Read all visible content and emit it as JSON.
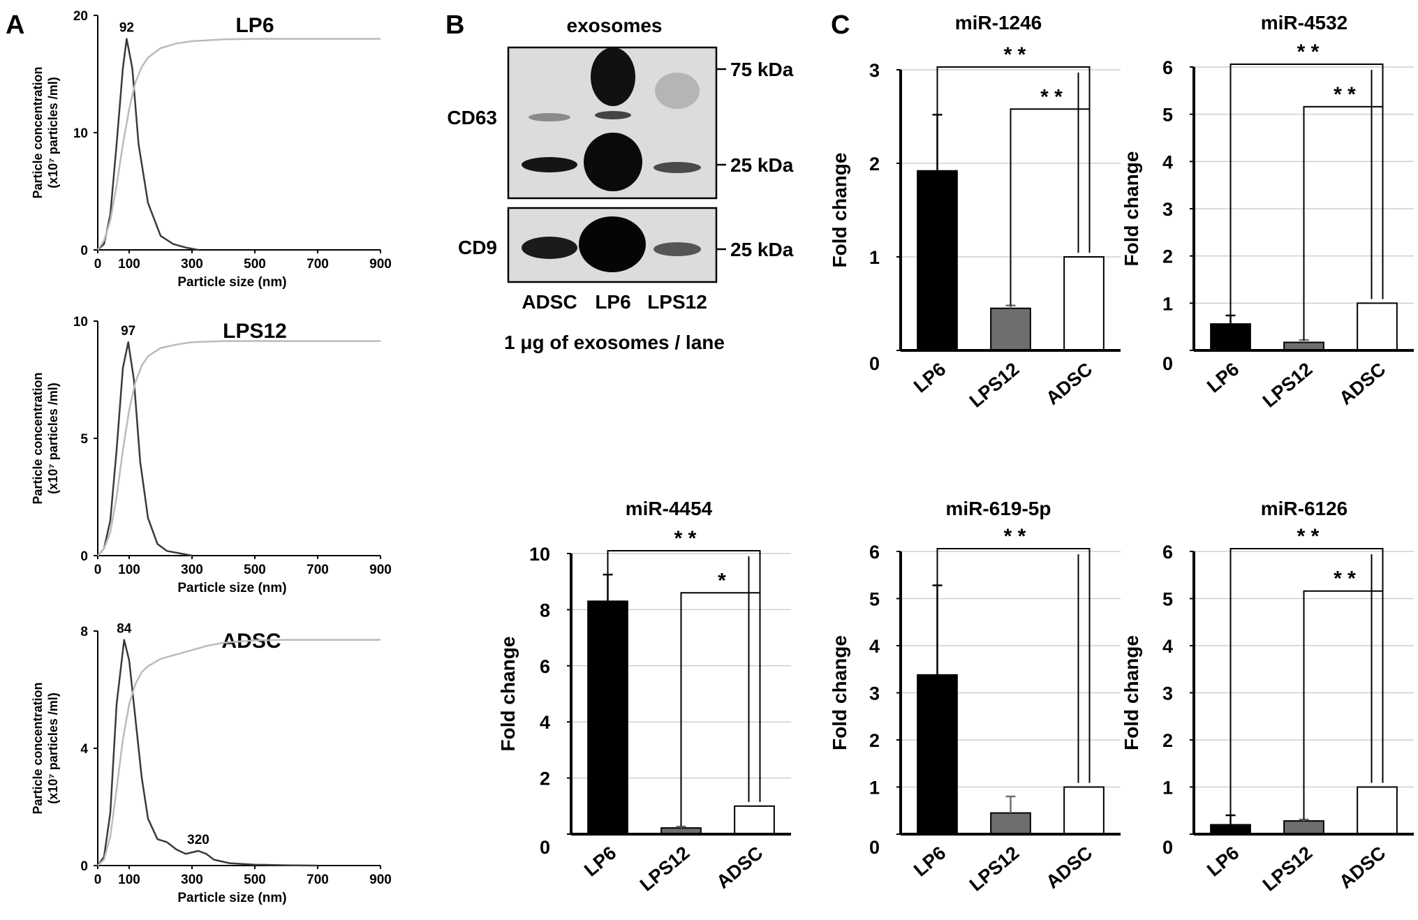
{
  "panels": {
    "a": "A",
    "b": "B",
    "c": "C"
  },
  "colors": {
    "black": "#000000",
    "size_curve": "#3a3a3a",
    "cumulative_curve": "#bbbbbb",
    "bar_lp6": "#000000",
    "bar_lps12": "#6e6e6e",
    "bar_adsc": "#ffffff",
    "grid": "#cfcfcf"
  },
  "chart_data": [
    {
      "type": "line",
      "panel": "A",
      "title": "LP6",
      "xlabel": "Particle size (nm)",
      "ylabel_line1": "Particle concentration",
      "ylabel_line2": "(x10⁷ particles /ml)",
      "xlim": [
        0,
        900
      ],
      "ylim": [
        0,
        20
      ],
      "xticks": [
        0,
        100,
        300,
        500,
        700,
        900
      ],
      "yticks": [
        0,
        10,
        20
      ],
      "series": [
        {
          "kind": "size-distribution",
          "x": [
            0,
            20,
            40,
            60,
            80,
            92,
            110,
            130,
            160,
            200,
            240,
            280,
            320
          ],
          "y": [
            0,
            0.5,
            3,
            9,
            15.5,
            18,
            15.5,
            9,
            4,
            1.2,
            0.5,
            0.2,
            0
          ]
        },
        {
          "kind": "cumulative",
          "x": [
            0,
            20,
            40,
            60,
            80,
            100,
            120,
            140,
            160,
            200,
            250,
            300,
            400,
            500,
            600,
            900
          ],
          "y": [
            0,
            0.8,
            2.5,
            5.5,
            9,
            12,
            14.3,
            15.6,
            16.4,
            17.2,
            17.6,
            17.8,
            17.95,
            18,
            18,
            18
          ]
        }
      ],
      "annotations": [
        {
          "x": 92,
          "y": 18,
          "text": "92"
        }
      ]
    },
    {
      "type": "line",
      "panel": "A",
      "title": "LPS12",
      "xlabel": "Particle size (nm)",
      "ylabel_line1": "Particle concentration",
      "ylabel_line2": "(x10⁷ particles /ml)",
      "xlim": [
        0,
        900
      ],
      "ylim": [
        0,
        10
      ],
      "xticks": [
        0,
        100,
        300,
        500,
        700,
        900
      ],
      "yticks": [
        0,
        5,
        10
      ],
      "series": [
        {
          "kind": "size-distribution",
          "x": [
            0,
            20,
            40,
            60,
            80,
            97,
            115,
            135,
            160,
            190,
            220,
            260,
            300
          ],
          "y": [
            0,
            0.3,
            1.5,
            4.5,
            8,
            9.1,
            7.5,
            4,
            1.6,
            0.5,
            0.2,
            0.1,
            0
          ]
        },
        {
          "kind": "cumulative",
          "x": [
            0,
            20,
            40,
            60,
            80,
            100,
            120,
            140,
            160,
            200,
            250,
            300,
            400,
            500,
            900
          ],
          "y": [
            0,
            0.3,
            1,
            2.5,
            4.5,
            6.2,
            7.4,
            8.1,
            8.5,
            8.85,
            9,
            9.1,
            9.15,
            9.15,
            9.15
          ]
        }
      ],
      "annotations": [
        {
          "x": 97,
          "y": 9.1,
          "text": "97"
        }
      ]
    },
    {
      "type": "line",
      "panel": "A",
      "title": "ADSC",
      "xlabel": "Particle size (nm)",
      "ylabel_line1": "Particle concentration",
      "ylabel_line2": "(x10⁷ particles /ml)",
      "xlim": [
        0,
        900
      ],
      "ylim": [
        0,
        8
      ],
      "xticks": [
        0,
        100,
        300,
        500,
        700,
        900
      ],
      "yticks": [
        0,
        4,
        8
      ],
      "series": [
        {
          "kind": "size-distribution",
          "x": [
            0,
            20,
            40,
            60,
            84,
            100,
            120,
            140,
            160,
            190,
            220,
            250,
            280,
            300,
            320,
            345,
            370,
            420,
            500,
            600,
            700
          ],
          "y": [
            0,
            0.3,
            1.8,
            5.5,
            7.7,
            7,
            5,
            3,
            1.6,
            0.9,
            0.8,
            0.55,
            0.4,
            0.45,
            0.5,
            0.4,
            0.2,
            0.08,
            0.03,
            0.01,
            0
          ]
        },
        {
          "kind": "cumulative",
          "x": [
            0,
            20,
            40,
            60,
            80,
            100,
            120,
            140,
            160,
            200,
            250,
            300,
            350,
            400,
            500,
            600,
            700,
            900
          ],
          "y": [
            0,
            0.2,
            1,
            2.6,
            4.3,
            5.5,
            6.2,
            6.6,
            6.8,
            7.05,
            7.2,
            7.35,
            7.5,
            7.6,
            7.68,
            7.7,
            7.7,
            7.7
          ]
        }
      ],
      "annotations": [
        {
          "x": 84,
          "y": 7.7,
          "text": "84"
        },
        {
          "x": 320,
          "y": 0.5,
          "text": "320"
        }
      ]
    },
    {
      "type": "bar",
      "panel": "C",
      "title": "miR-1246",
      "ylabel": "Fold change",
      "categories": [
        "LP6",
        "LPS12",
        "ADSC"
      ],
      "values": [
        1.92,
        0.45,
        1.0
      ],
      "errors": [
        0.6,
        0.03,
        0
      ],
      "ylim": [
        0,
        3
      ],
      "yticks": [
        0,
        1,
        2,
        3
      ],
      "significance": [
        {
          "from": 0,
          "to": 2,
          "label": "* *"
        },
        {
          "from": 1,
          "to": 2,
          "label": "* *"
        }
      ]
    },
    {
      "type": "bar",
      "panel": "C",
      "title": "miR-4532",
      "ylabel": "Fold change",
      "categories": [
        "LP6",
        "LPS12",
        "ADSC"
      ],
      "values": [
        0.56,
        0.17,
        1.0
      ],
      "errors": [
        0.18,
        0.05,
        0
      ],
      "ylim": [
        0,
        6
      ],
      "yticks": [
        0,
        1,
        2,
        3,
        4,
        5,
        6
      ],
      "significance": [
        {
          "from": 0,
          "to": 2,
          "label": "* *"
        },
        {
          "from": 1,
          "to": 2,
          "label": "* *"
        }
      ]
    },
    {
      "type": "bar",
      "panel": "C",
      "title": "miR-4454",
      "ylabel": "Fold change",
      "categories": [
        "LP6",
        "LPS12",
        "ADSC"
      ],
      "values": [
        8.3,
        0.22,
        1.0
      ],
      "errors": [
        0.95,
        0.05,
        0
      ],
      "ylim": [
        0,
        10
      ],
      "yticks": [
        0,
        2,
        4,
        6,
        8,
        10
      ],
      "significance": [
        {
          "from": 0,
          "to": 2,
          "label": "* *"
        },
        {
          "from": 1,
          "to": 2,
          "label": "*"
        }
      ]
    },
    {
      "type": "bar",
      "panel": "C",
      "title": "miR-619-5p",
      "ylabel": "Fold change",
      "categories": [
        "LP6",
        "LPS12",
        "ADSC"
      ],
      "values": [
        3.38,
        0.45,
        1.0
      ],
      "errors": [
        1.9,
        0.35,
        0
      ],
      "ylim": [
        0,
        6
      ],
      "yticks": [
        0,
        1,
        2,
        3,
        4,
        5,
        6
      ],
      "significance": [
        {
          "from": 0,
          "to": 2,
          "label": "* *"
        }
      ]
    },
    {
      "type": "bar",
      "panel": "C",
      "title": "miR-6126",
      "ylabel": "Fold change",
      "categories": [
        "LP6",
        "LPS12",
        "ADSC"
      ],
      "values": [
        0.2,
        0.28,
        1.0
      ],
      "errors": [
        0.2,
        0.03,
        0
      ],
      "ylim": [
        0,
        6
      ],
      "yticks": [
        0,
        1,
        2,
        3,
        4,
        5,
        6
      ],
      "significance": [
        {
          "from": 0,
          "to": 2,
          "label": "* *"
        },
        {
          "from": 1,
          "to": 2,
          "label": "* *"
        }
      ]
    }
  ],
  "western_blot": {
    "title": "exosomes",
    "rows": [
      {
        "protein": "CD63",
        "markers": [
          "75 kDa",
          "25 kDa"
        ]
      },
      {
        "protein": "CD9",
        "markers": [
          "25 kDa"
        ]
      }
    ],
    "lanes": [
      "ADSC",
      "LP6",
      "LPS12"
    ],
    "caption": "1 μg of exosomes / lane"
  }
}
